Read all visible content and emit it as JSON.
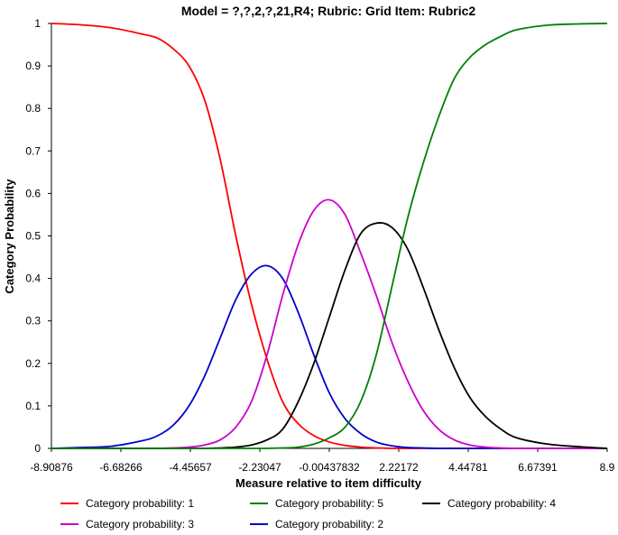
{
  "chart_data": {
    "type": "line",
    "title": "Model = ?,?,2,?,21,R4; Rubric: Grid Item: Rubric2",
    "xlabel": "Measure relative to item difficulty",
    "ylabel": "Category Probability",
    "xlim": [
      -8.90876,
      8.9
    ],
    "ylim": [
      0,
      1
    ],
    "grid": false,
    "legend_position": "bottom",
    "x_ticks": [
      -8.90876,
      -6.68266,
      -4.45657,
      -2.23047,
      -0.00437832,
      2.22172,
      4.44781,
      6.67391,
      8.9
    ],
    "x_tick_labels": [
      "-8.90876",
      "-6.68266",
      "-4.45657",
      "-2.23047",
      "-0.00437832",
      "2.22172",
      "4.44781",
      "6.67391",
      "8.9"
    ],
    "y_ticks": [
      0,
      0.1,
      0.2,
      0.3,
      0.4,
      0.5,
      0.6,
      0.7,
      0.8,
      0.9,
      1
    ],
    "y_tick_labels": [
      "0",
      "0.1",
      "0.2",
      "0.3",
      "0.4",
      "0.5",
      "0.6",
      "0.7",
      "0.8",
      "0.9",
      "1"
    ],
    "x": [
      -8.90876,
      -8.0,
      -7.0,
      -6.0,
      -5.5,
      -5.0,
      -4.5,
      -4.0,
      -3.5,
      -3.0,
      -2.5,
      -2.0,
      -1.5,
      -1.0,
      -0.5,
      0.0,
      0.5,
      1.0,
      1.5,
      2.0,
      2.5,
      3.0,
      3.5,
      4.0,
      4.5,
      5.0,
      5.5,
      6.0,
      7.0,
      8.0,
      8.9
    ],
    "series": [
      {
        "name": "Category probability: 1",
        "color": "#ff0000",
        "values": [
          1.0,
          0.997,
          0.99,
          0.975,
          0.965,
          0.94,
          0.9,
          0.82,
          0.68,
          0.5,
          0.34,
          0.21,
          0.11,
          0.058,
          0.03,
          0.015,
          0.007,
          0.003,
          0.001,
          0.0,
          0.0,
          0.0,
          0.0,
          0.0,
          0.0,
          0.0,
          0.0,
          0.0,
          0.0,
          0.0,
          0.0
        ]
      },
      {
        "name": "Category probability: 2",
        "color": "#0000cc",
        "values": [
          0.0,
          0.002,
          0.005,
          0.018,
          0.03,
          0.055,
          0.1,
          0.17,
          0.26,
          0.35,
          0.41,
          0.43,
          0.4,
          0.32,
          0.22,
          0.13,
          0.07,
          0.035,
          0.015,
          0.006,
          0.002,
          0.001,
          0.0,
          0.0,
          0.0,
          0.0,
          0.0,
          0.0,
          0.0,
          0.0,
          0.0
        ]
      },
      {
        "name": "Category probability: 3",
        "color": "#cc00cc",
        "values": [
          0.0,
          0.0,
          0.0,
          0.0,
          0.0,
          0.001,
          0.003,
          0.008,
          0.02,
          0.05,
          0.11,
          0.22,
          0.36,
          0.48,
          0.56,
          0.585,
          0.55,
          0.46,
          0.36,
          0.25,
          0.16,
          0.09,
          0.045,
          0.02,
          0.008,
          0.003,
          0.001,
          0.0,
          0.0,
          0.0,
          0.0
        ]
      },
      {
        "name": "Category probability: 4",
        "color": "#000000",
        "values": [
          0.0,
          0.0,
          0.0,
          0.0,
          0.0,
          0.0,
          0.0,
          0.0,
          0.001,
          0.003,
          0.008,
          0.02,
          0.045,
          0.11,
          0.2,
          0.31,
          0.42,
          0.505,
          0.53,
          0.52,
          0.47,
          0.38,
          0.28,
          0.19,
          0.12,
          0.075,
          0.045,
          0.025,
          0.01,
          0.004,
          0.0
        ]
      },
      {
        "name": "Category probability: 5",
        "color": "#008000",
        "values": [
          0.0,
          0.0,
          0.0,
          0.0,
          0.0,
          0.0,
          0.0,
          0.0,
          0.0,
          0.0,
          0.0,
          0.0,
          0.001,
          0.003,
          0.01,
          0.025,
          0.05,
          0.11,
          0.22,
          0.38,
          0.54,
          0.67,
          0.78,
          0.87,
          0.92,
          0.95,
          0.97,
          0.985,
          0.996,
          0.999,
          1.0
        ]
      }
    ]
  }
}
